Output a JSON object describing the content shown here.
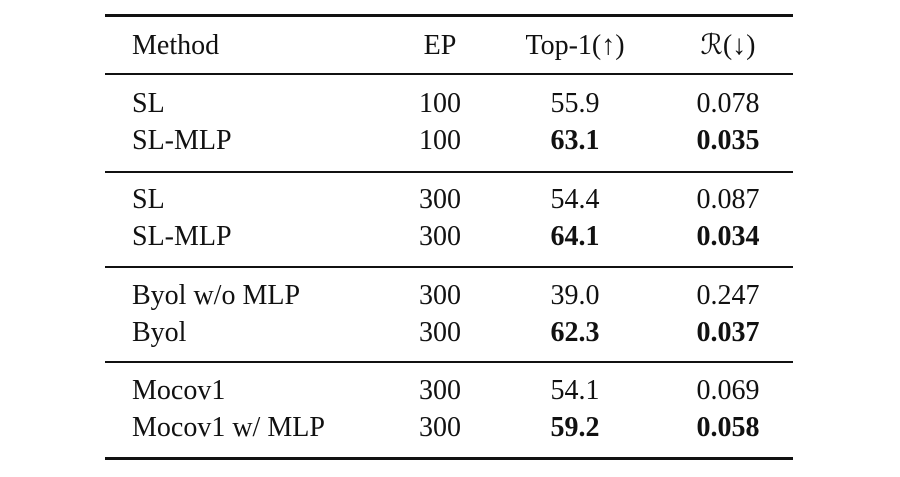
{
  "table": {
    "header": [
      "Method",
      "EP",
      "Top-1(↑)",
      "ℛ(↓)"
    ],
    "bold_columns": [
      2,
      3
    ],
    "groups": [
      {
        "rows": [
          {
            "cells": [
              "SL",
              "100",
              "55.9",
              "0.078"
            ],
            "bold": false
          },
          {
            "cells": [
              "SL-MLP",
              "100",
              "63.1",
              "0.035"
            ],
            "bold": true
          }
        ]
      },
      {
        "rows": [
          {
            "cells": [
              "SL",
              "300",
              "54.4",
              "0.087"
            ],
            "bold": false
          },
          {
            "cells": [
              "SL-MLP",
              "300",
              "64.1",
              "0.034"
            ],
            "bold": true
          }
        ]
      },
      {
        "rows": [
          {
            "cells": [
              "Byol w/o MLP",
              "300",
              "39.0",
              "0.247"
            ],
            "bold": false
          },
          {
            "cells": [
              "Byol",
              "300",
              "62.3",
              "0.037"
            ],
            "bold": true
          }
        ]
      },
      {
        "rows": [
          {
            "cells": [
              "Mocov1",
              "300",
              "54.1",
              "0.069"
            ],
            "bold": false
          },
          {
            "cells": [
              "Mocov1 w/ MLP",
              "300",
              "59.2",
              "0.058"
            ],
            "bold": true
          }
        ]
      }
    ]
  }
}
